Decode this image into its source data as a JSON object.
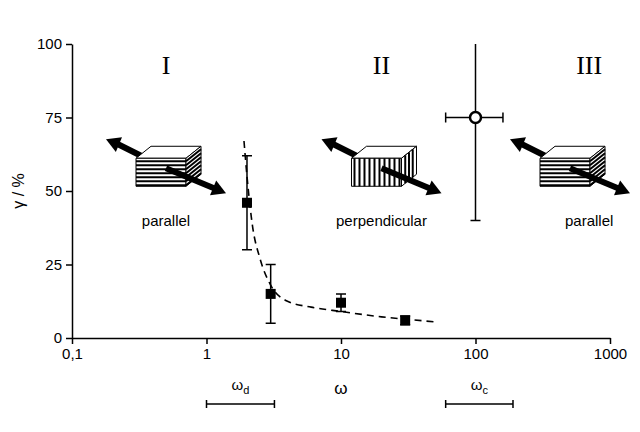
{
  "chart_data": {
    "type": "scatter",
    "x_label": "ω",
    "y_label": "γ / %",
    "log": "x",
    "grid": false,
    "xlim": [
      0.1,
      1000
    ],
    "ylim": [
      0,
      100
    ],
    "xticks": [
      {
        "value": 0.1,
        "label": "0,1"
      },
      1,
      10,
      100,
      1000
    ],
    "yticks": [
      0,
      25,
      50,
      75,
      100
    ],
    "series": [
      {
        "type": "line",
        "line_style": "dashed",
        "color": "#000000",
        "x": [
          1.9,
          2,
          2.2,
          2.5,
          3,
          4,
          6,
          10,
          20,
          30,
          50
        ],
        "values": [
          67,
          55,
          38,
          27,
          18,
          12.5,
          10.5,
          9,
          7.2,
          6.4,
          5.5
        ]
      },
      {
        "type": "scatter",
        "marker": "square",
        "color": "#000000",
        "x": [
          2,
          3,
          10,
          30
        ],
        "values": [
          46,
          15,
          12,
          6
        ],
        "error": [
          16,
          10,
          3,
          1.5
        ]
      },
      {
        "type": "scatter",
        "marker": "open-circle",
        "color": "#000000",
        "x": [
          100
        ],
        "values": [
          75
        ],
        "error": [
          35
        ],
        "x_error": [
          [
            40,
            60
          ]
        ]
      }
    ],
    "regions": [
      {
        "numeral": "I",
        "label": "parallel",
        "x": 0.5
      },
      {
        "numeral": "II",
        "label": "perpendicular",
        "x": 20
      },
      {
        "numeral": "III",
        "label": "parallel",
        "x": 700
      }
    ],
    "ranges": [
      {
        "symbol": "ω",
        "subscript": "d",
        "x": [
          1,
          3.2
        ]
      },
      {
        "symbol": "ω",
        "subscript": "c",
        "x": [
          60,
          190
        ]
      }
    ]
  }
}
